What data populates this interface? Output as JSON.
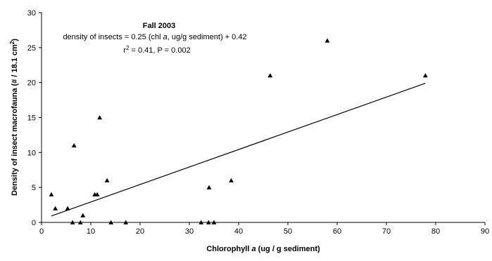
{
  "chart_data": {
    "type": "scatter",
    "title": "Fall 2003",
    "annotation": {
      "equation": "density of insects = 0.25 (chl a, ug/g sediment) + 0.42",
      "stats": "r2 = 0.41, P = 0.002"
    },
    "xlabel": "Chlorophyll a (ug / g sediment)",
    "ylabel": "Density of insect macrofauna (# / 18.1 cm2)",
    "xlim": [
      0,
      90
    ],
    "ylim": [
      0,
      30
    ],
    "x_ticks": [
      0,
      10,
      20,
      30,
      40,
      50,
      60,
      70,
      80,
      90
    ],
    "y_ticks": [
      0,
      5,
      10,
      15,
      20,
      25,
      30
    ],
    "grid": false,
    "legend": "none",
    "points": [
      {
        "x": 2.0,
        "y": 4
      },
      {
        "x": 2.8,
        "y": 2
      },
      {
        "x": 5.3,
        "y": 2
      },
      {
        "x": 6.3,
        "y": 0
      },
      {
        "x": 6.6,
        "y": 11
      },
      {
        "x": 7.9,
        "y": 0
      },
      {
        "x": 8.4,
        "y": 1
      },
      {
        "x": 10.8,
        "y": 4
      },
      {
        "x": 11.3,
        "y": 4
      },
      {
        "x": 11.8,
        "y": 15
      },
      {
        "x": 13.3,
        "y": 6
      },
      {
        "x": 14.1,
        "y": 0
      },
      {
        "x": 17.1,
        "y": 0
      },
      {
        "x": 32.4,
        "y": 0
      },
      {
        "x": 33.9,
        "y": 0
      },
      {
        "x": 34.0,
        "y": 5
      },
      {
        "x": 35.0,
        "y": 0
      },
      {
        "x": 38.5,
        "y": 6
      },
      {
        "x": 46.4,
        "y": 21
      },
      {
        "x": 58.0,
        "y": 26
      },
      {
        "x": 77.9,
        "y": 21
      }
    ],
    "trendline": {
      "x": [
        2.0,
        77.9
      ],
      "y": [
        0.92,
        19.9
      ]
    },
    "marker": "triangle",
    "colors": {
      "marker": "#000000",
      "line": "#000000",
      "axis": "#000000"
    }
  }
}
